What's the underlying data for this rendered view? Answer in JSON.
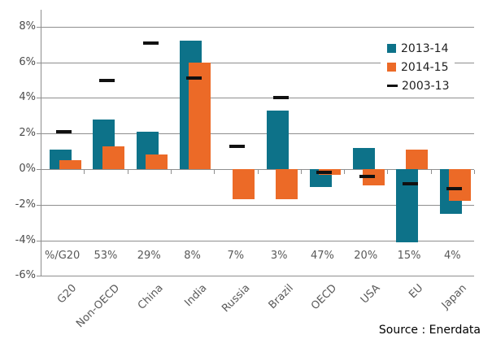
{
  "chart_data": {
    "type": "bar",
    "title": "",
    "xlabel": "",
    "ylabel": "",
    "ylim": [
      -6,
      8
    ],
    "ytick_step": 2,
    "ytick_labels": [
      "8%",
      "6%",
      "4%",
      "2%",
      "0%",
      "-2%",
      "-4%",
      "-6%"
    ],
    "grid": true,
    "legend_position": "top-right",
    "categories": [
      "G20",
      "Non-OECD",
      "China",
      "India",
      "Russia",
      "Brazil",
      "OECD",
      "USA",
      "EU",
      "Japan"
    ],
    "share_of_g20_row": [
      "%/G20",
      "53%",
      "29%",
      "8%",
      "7%",
      "3%",
      "47%",
      "20%",
      "15%",
      "4%"
    ],
    "series": [
      {
        "name": "2013-14",
        "type": "bar",
        "color": "#0d7289",
        "values": [
          1.1,
          2.8,
          2.1,
          7.2,
          0.0,
          3.3,
          -1.0,
          1.2,
          -4.1,
          -2.5
        ]
      },
      {
        "name": "2014-15",
        "type": "bar",
        "color": "#ec6a27",
        "values": [
          0.5,
          1.3,
          0.8,
          6.0,
          -1.7,
          -1.7,
          -0.3,
          -0.9,
          1.1,
          -1.8
        ]
      },
      {
        "name": "2003-13",
        "type": "dash",
        "color": "#111111",
        "values": [
          2.1,
          5.0,
          7.1,
          5.1,
          1.3,
          4.0,
          -0.2,
          -0.4,
          -0.8,
          -1.1
        ]
      }
    ]
  },
  "colors": {
    "series_2013_14": "#0d7289",
    "series_2014_15": "#ec6a27",
    "series_2003_13": "#111111",
    "gridline": "#8e8e8e",
    "axis_label": "#4b4b4b",
    "category_label": "#595959"
  },
  "legend": {
    "entries": [
      {
        "label": "2013-14",
        "swatch": "teal-square"
      },
      {
        "label": "2014-15",
        "swatch": "orange-square"
      },
      {
        "label": "2003-13",
        "swatch": "black-dash"
      }
    ]
  },
  "source": "Source : Enerdata"
}
